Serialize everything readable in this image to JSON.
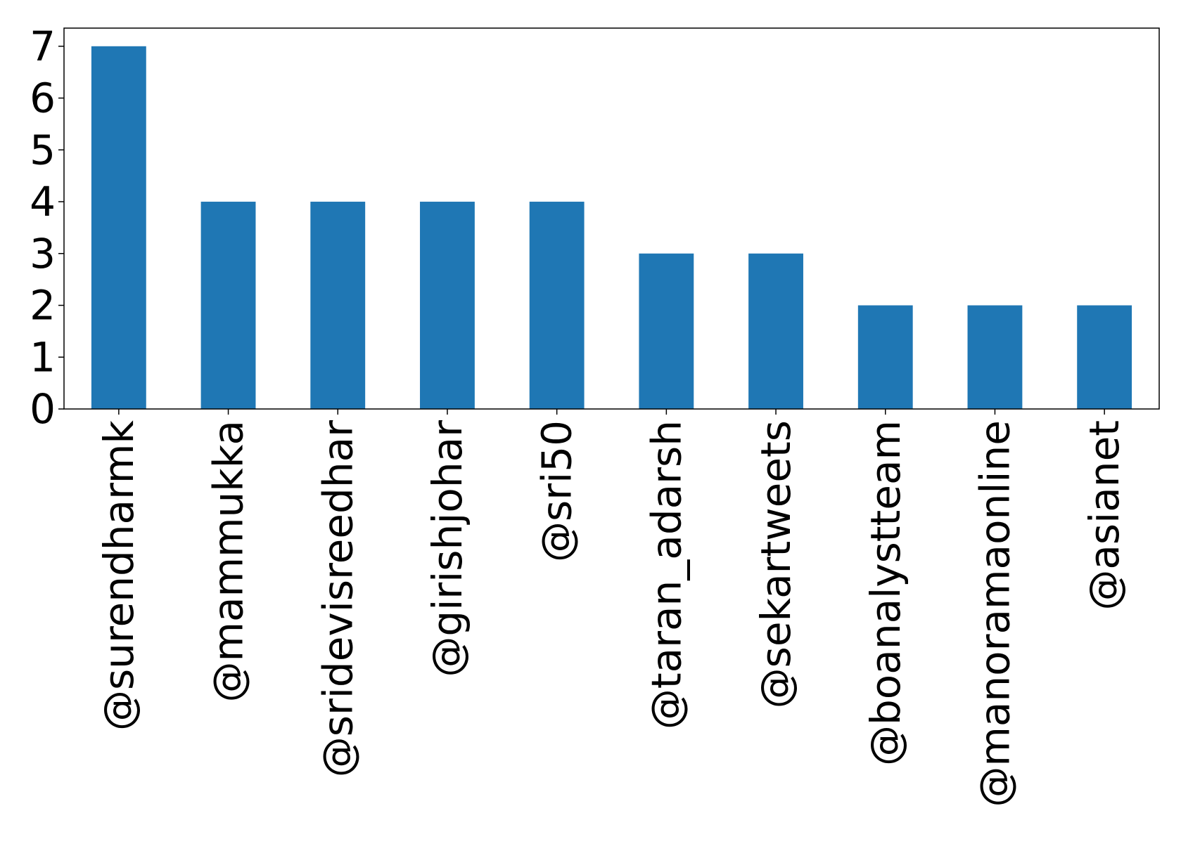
{
  "chart_data": {
    "type": "bar",
    "title": "",
    "xlabel": "",
    "ylabel": "",
    "categories": [
      "@surendharmk",
      "@mammukka",
      "@sridevisreedhar",
      "@girishjohar",
      "@sri50",
      "@taran_adarsh",
      "@sekartweets",
      "@boanalystteam",
      "@manoramaonline",
      "@asianet"
    ],
    "values": [
      7,
      4,
      4,
      4,
      4,
      3,
      3,
      2,
      2,
      2
    ],
    "ylim": [
      0,
      7.35
    ],
    "yticks": [
      "0",
      "1",
      "2",
      "3",
      "4",
      "5",
      "6",
      "7"
    ],
    "bar_color": "#1f77b4",
    "grid": false,
    "legend": "none"
  }
}
